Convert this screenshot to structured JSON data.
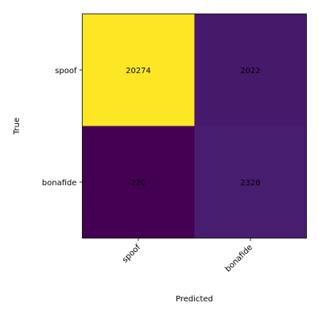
{
  "chart_data": {
    "type": "heatmap",
    "title": "",
    "xlabel": "Predicted",
    "ylabel": "True",
    "x_categories": [
      "spoof",
      "bonafide"
    ],
    "y_categories": [
      "spoof",
      "bonafide"
    ],
    "values": [
      [
        20274,
        2022
      ],
      [
        220,
        2328
      ]
    ],
    "colormap": "viridis",
    "colors": {
      "high": "#fde725",
      "low": "#440154",
      "mid_low_a": "#481f70",
      "mid_low_b": "#482374"
    },
    "grid": false,
    "colorbar": false
  }
}
